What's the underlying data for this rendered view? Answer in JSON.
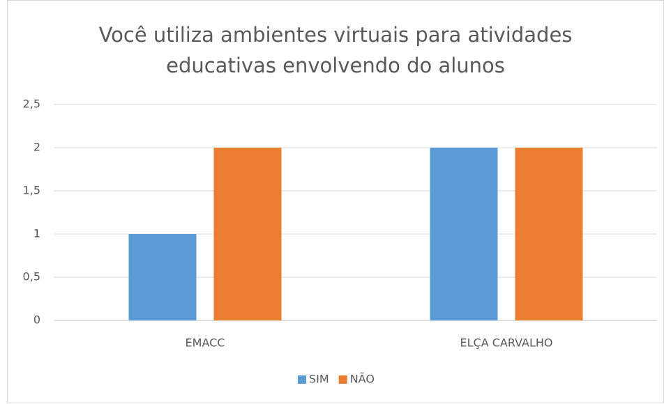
{
  "chart_data": {
    "type": "bar",
    "title": "Você utiliza ambientes virtuais para atividades educativas envolvendo do alunos",
    "categories": [
      "EMACC",
      "ELÇA CARVALHO"
    ],
    "series": [
      {
        "name": "SIM",
        "color": "#5b9bd5",
        "values": [
          1,
          2
        ]
      },
      {
        "name": "NÃO",
        "color": "#ed7d31",
        "values": [
          2,
          2
        ]
      }
    ],
    "ylim": [
      0,
      2.5
    ],
    "yticks": [
      0,
      {
        "value": 0.5,
        "label": "0,5"
      },
      1,
      {
        "value": 1.5,
        "label": "1,5"
      },
      2,
      {
        "value": 2.5,
        "label": "2,5"
      }
    ],
    "grid": true,
    "legend": "bottom"
  }
}
